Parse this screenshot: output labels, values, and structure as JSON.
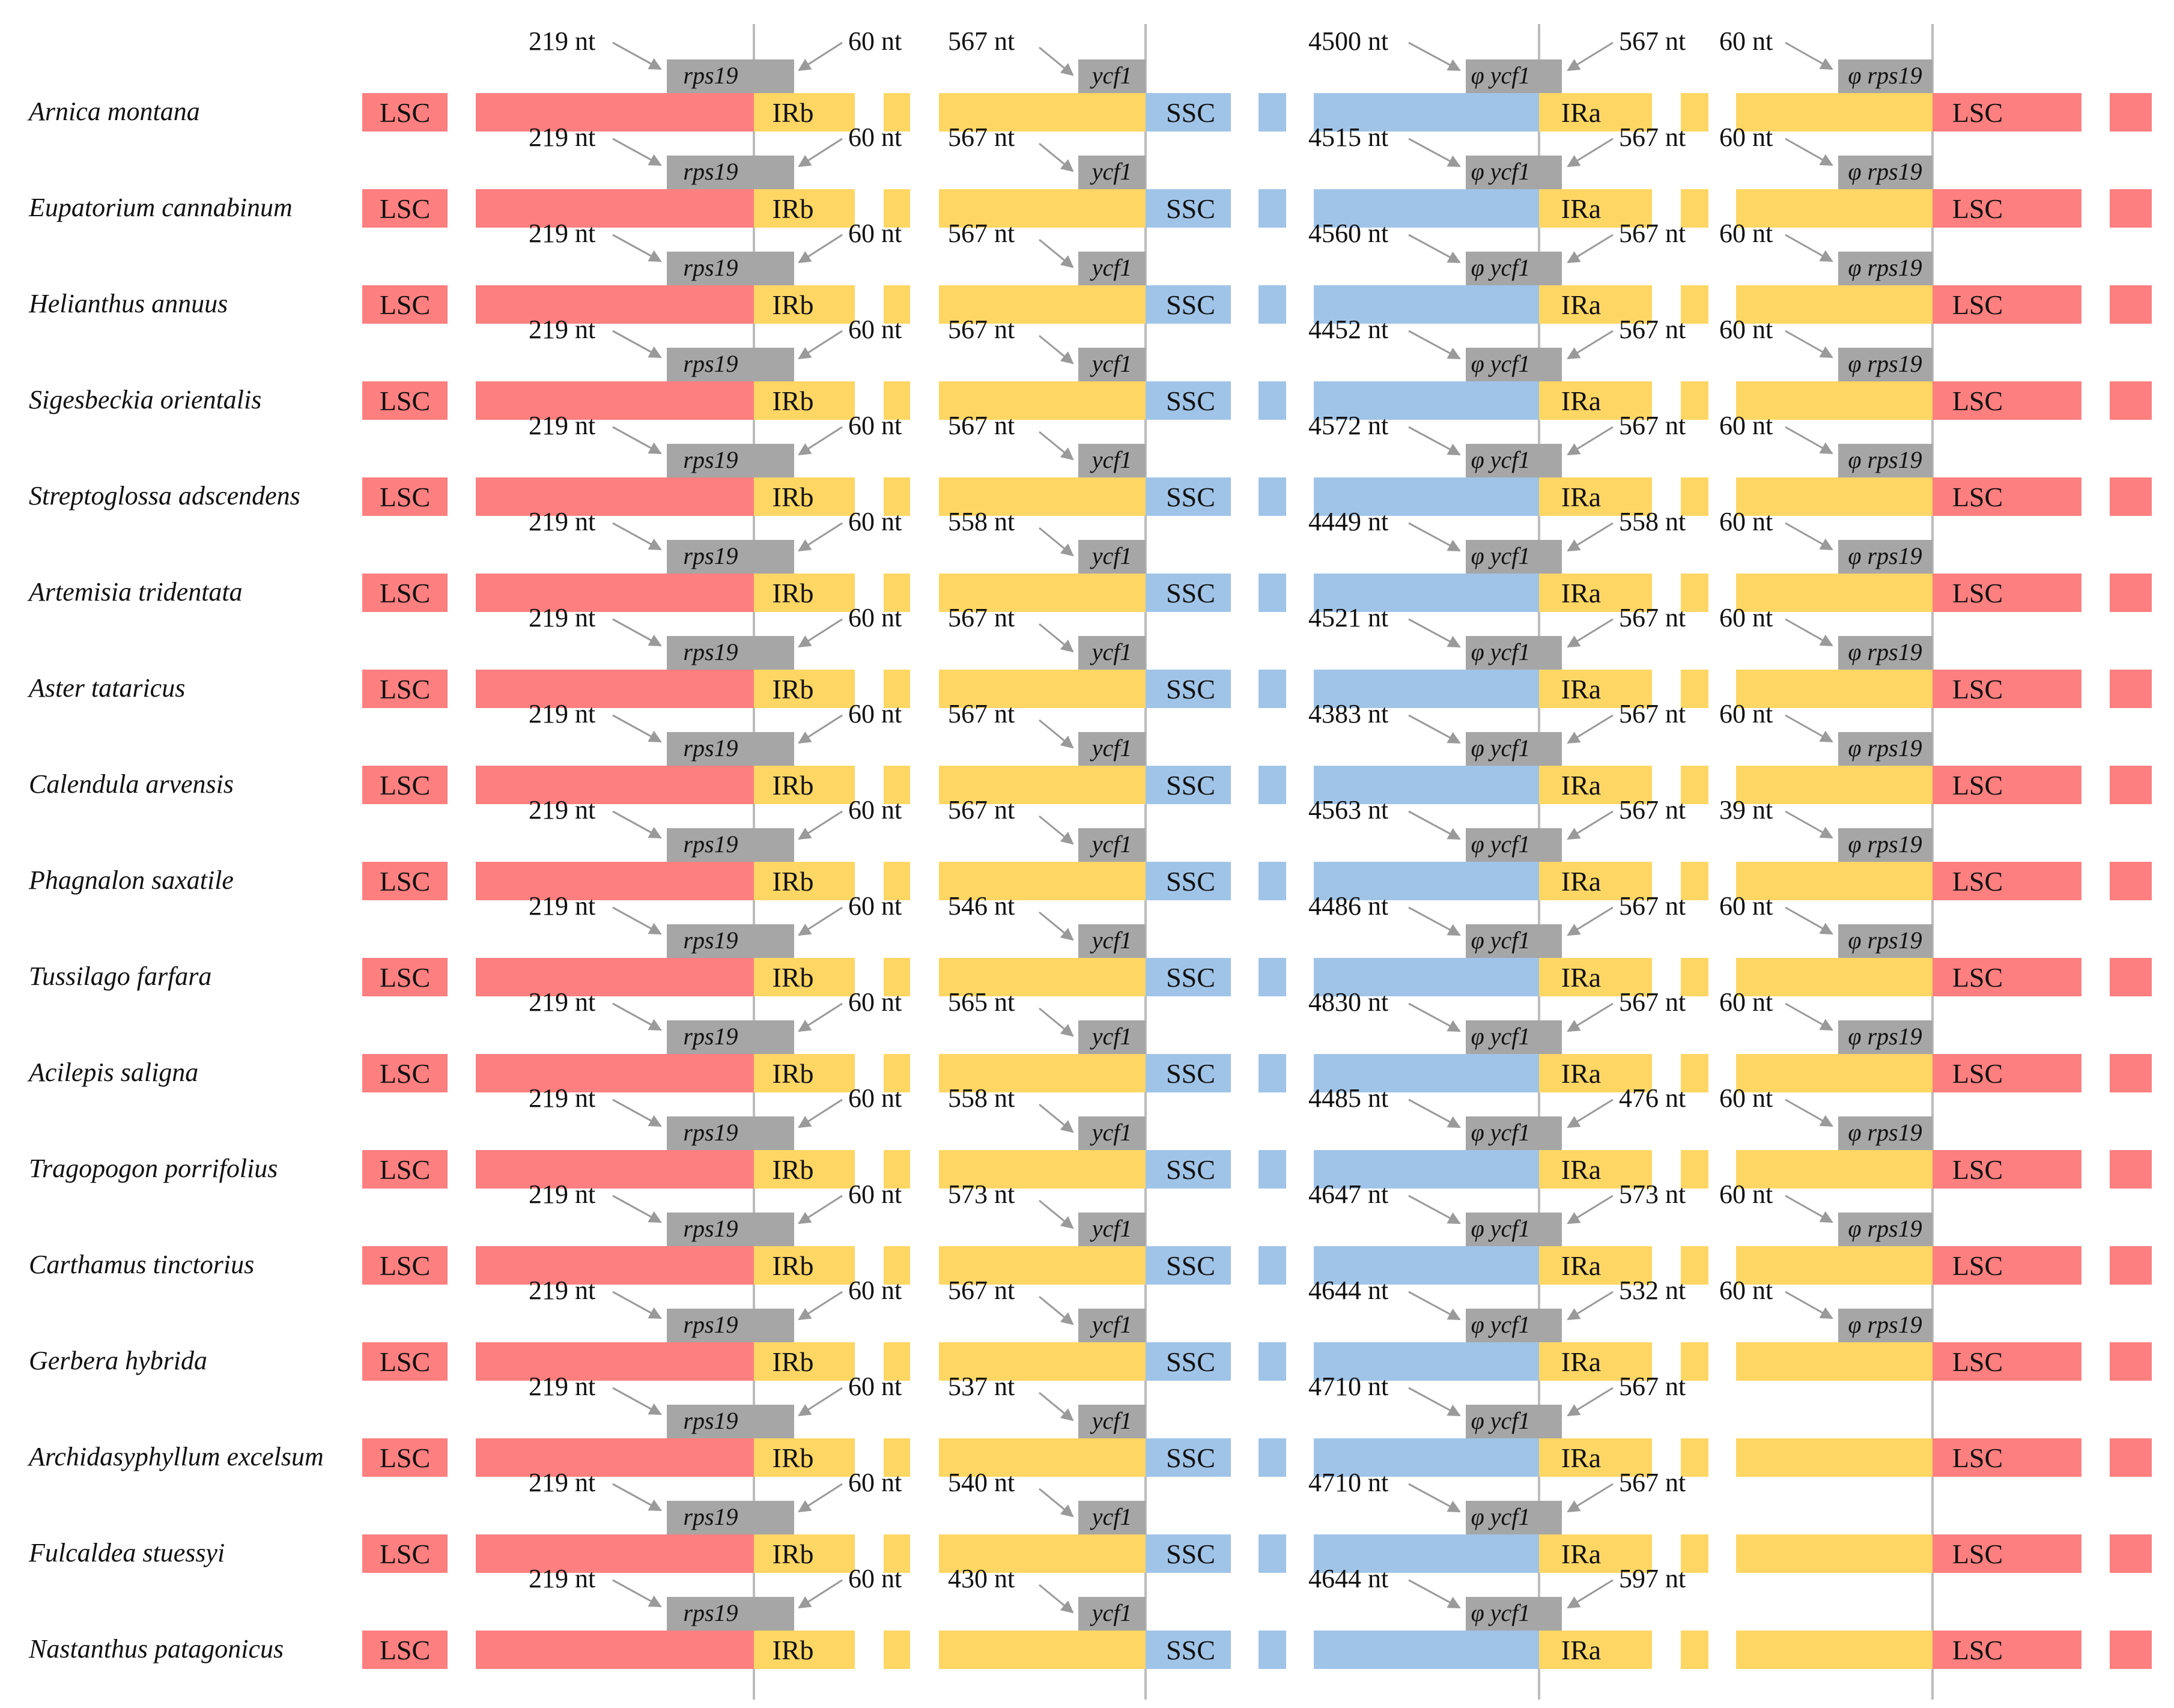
{
  "region_labels": {
    "lsc": "LSC",
    "irb": "IRb",
    "ssc": "SSC",
    "ira": "IRa"
  },
  "gene_labels": {
    "rps19": "rps19",
    "ycf1": "ycf1",
    "psi_ycf1": "φ ycf1",
    "psi_rps19": "φ rps19"
  },
  "colors": {
    "lsc": "#fd7f7f",
    "ir": "#fed664",
    "ssc": "#a0c4e8",
    "gene": "#a6a6a6",
    "arrow": "#9a9a9a",
    "divider": "#bcbcbc"
  },
  "species": [
    {
      "name": "Arnica montana",
      "rps19_lsc": "219 nt",
      "rps19_irb": "60 nt",
      "ycf1_irb": "567 nt",
      "psi_ycf1_ssc": "4500 nt",
      "psi_ycf1_ira": "567 nt",
      "psi_rps19_ira": "60 nt"
    },
    {
      "name": "Eupatorium cannabinum",
      "rps19_lsc": "219 nt",
      "rps19_irb": "60 nt",
      "ycf1_irb": "567 nt",
      "psi_ycf1_ssc": "4515 nt",
      "psi_ycf1_ira": "567 nt",
      "psi_rps19_ira": "60 nt"
    },
    {
      "name": "Helianthus annuus",
      "rps19_lsc": "219 nt",
      "rps19_irb": "60 nt",
      "ycf1_irb": "567 nt",
      "psi_ycf1_ssc": "4560 nt",
      "psi_ycf1_ira": "567 nt",
      "psi_rps19_ira": "60 nt"
    },
    {
      "name": "Sigesbeckia orientalis",
      "rps19_lsc": "219 nt",
      "rps19_irb": "60 nt",
      "ycf1_irb": "567 nt",
      "psi_ycf1_ssc": "4452 nt",
      "psi_ycf1_ira": "567 nt",
      "psi_rps19_ira": "60 nt"
    },
    {
      "name": "Streptoglossa adscendens",
      "rps19_lsc": "219 nt",
      "rps19_irb": "60 nt",
      "ycf1_irb": "567 nt",
      "psi_ycf1_ssc": "4572 nt",
      "psi_ycf1_ira": "567 nt",
      "psi_rps19_ira": "60 nt"
    },
    {
      "name": "Artemisia tridentata",
      "rps19_lsc": "219 nt",
      "rps19_irb": "60 nt",
      "ycf1_irb": "558 nt",
      "psi_ycf1_ssc": "4449 nt",
      "psi_ycf1_ira": "558 nt",
      "psi_rps19_ira": "60 nt"
    },
    {
      "name": "Aster tataricus",
      "rps19_lsc": "219 nt",
      "rps19_irb": "60 nt",
      "ycf1_irb": "567 nt",
      "psi_ycf1_ssc": "4521 nt",
      "psi_ycf1_ira": "567 nt",
      "psi_rps19_ira": "60 nt"
    },
    {
      "name": "Calendula arvensis",
      "rps19_lsc": "219 nt",
      "rps19_irb": "60 nt",
      "ycf1_irb": "567 nt",
      "psi_ycf1_ssc": "4383 nt",
      "psi_ycf1_ira": "567 nt",
      "psi_rps19_ira": "60 nt"
    },
    {
      "name": "Phagnalon saxatile",
      "rps19_lsc": "219 nt",
      "rps19_irb": "60 nt",
      "ycf1_irb": "567 nt",
      "psi_ycf1_ssc": "4563 nt",
      "psi_ycf1_ira": "567 nt",
      "psi_rps19_ira": "39 nt"
    },
    {
      "name": "Tussilago farfara",
      "rps19_lsc": "219 nt",
      "rps19_irb": "60 nt",
      "ycf1_irb": "546 nt",
      "psi_ycf1_ssc": "4486 nt",
      "psi_ycf1_ira": "567 nt",
      "psi_rps19_ira": "60 nt"
    },
    {
      "name": "Acilepis saligna",
      "rps19_lsc": "219 nt",
      "rps19_irb": "60 nt",
      "ycf1_irb": "565 nt",
      "psi_ycf1_ssc": "4830 nt",
      "psi_ycf1_ira": "567 nt",
      "psi_rps19_ira": "60 nt"
    },
    {
      "name": "Tragopogon porrifolius",
      "rps19_lsc": "219 nt",
      "rps19_irb": "60 nt",
      "ycf1_irb": "558 nt",
      "psi_ycf1_ssc": "4485 nt",
      "psi_ycf1_ira": "476 nt",
      "psi_rps19_ira": "60 nt"
    },
    {
      "name": "Carthamus tinctorius",
      "rps19_lsc": "219 nt",
      "rps19_irb": "60 nt",
      "ycf1_irb": "573 nt",
      "psi_ycf1_ssc": "4647 nt",
      "psi_ycf1_ira": "573 nt",
      "psi_rps19_ira": "60 nt"
    },
    {
      "name": "Gerbera hybrida",
      "rps19_lsc": "219 nt",
      "rps19_irb": "60 nt",
      "ycf1_irb": "567 nt",
      "psi_ycf1_ssc": "4644 nt",
      "psi_ycf1_ira": "532 nt",
      "psi_rps19_ira": "60 nt"
    },
    {
      "name": "Archidasyphyllum excelsum",
      "rps19_lsc": "219 nt",
      "rps19_irb": "60 nt",
      "ycf1_irb": "537 nt",
      "psi_ycf1_ssc": "4710 nt",
      "psi_ycf1_ira": "567 nt",
      "psi_rps19_ira": ""
    },
    {
      "name": "Fulcaldea stuessyi",
      "rps19_lsc": "219 nt",
      "rps19_irb": "60 nt",
      "ycf1_irb": "540 nt",
      "psi_ycf1_ssc": "4710 nt",
      "psi_ycf1_ira": "567 nt",
      "psi_rps19_ira": ""
    },
    {
      "name": "Nastanthus patagonicus",
      "rps19_lsc": "219 nt",
      "rps19_irb": "60 nt",
      "ycf1_irb": "430 nt",
      "psi_ycf1_ssc": "4644 nt",
      "psi_ycf1_ira": "597 nt",
      "psi_rps19_ira": ""
    }
  ]
}
